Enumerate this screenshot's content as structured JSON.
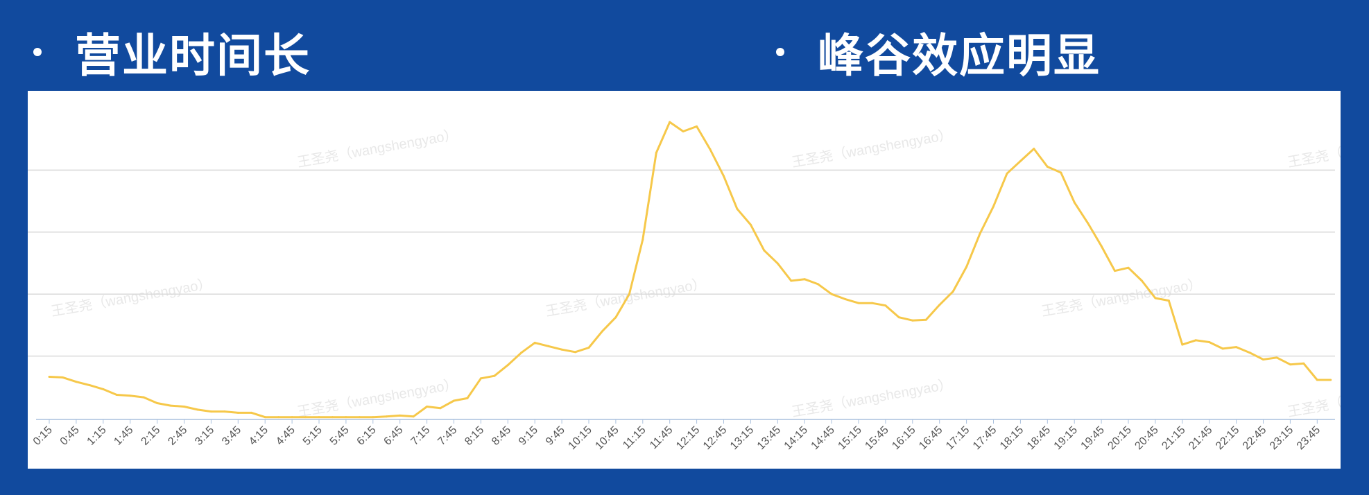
{
  "headings": {
    "left": "营业时间长",
    "right": "峰谷效应明显"
  },
  "watermark": "王圣尧（wangshengyao）",
  "colors": {
    "background": "#114a9e",
    "line": "#f6c84a",
    "grid": "#d9d9d9",
    "axis": "#aac0dd"
  },
  "chart_data": {
    "type": "line",
    "title": "",
    "xlabel": "",
    "ylabel": "",
    "ylim": [
      0,
      100
    ],
    "grid": true,
    "x": [
      "0:15",
      "0:30",
      "0:45",
      "1:00",
      "1:15",
      "1:30",
      "1:45",
      "2:00",
      "2:15",
      "2:30",
      "2:45",
      "3:00",
      "3:15",
      "3:30",
      "3:45",
      "4:00",
      "4:15",
      "4:30",
      "4:45",
      "5:00",
      "5:15",
      "5:30",
      "5:45",
      "6:00",
      "6:15",
      "6:30",
      "6:45",
      "7:00",
      "7:15",
      "7:30",
      "7:45",
      "8:00",
      "8:15",
      "8:30",
      "8:45",
      "9:00",
      "9:15",
      "9:30",
      "9:45",
      "10:00",
      "10:15",
      "10:30",
      "10:45",
      "11:00",
      "11:15",
      "11:30",
      "11:45",
      "12:00",
      "12:15",
      "12:30",
      "12:45",
      "13:00",
      "13:15",
      "13:30",
      "13:45",
      "14:00",
      "14:15",
      "14:30",
      "14:45",
      "15:00",
      "15:15",
      "15:30",
      "15:45",
      "16:00",
      "16:15",
      "16:30",
      "16:45",
      "17:00",
      "17:15",
      "17:30",
      "17:45",
      "18:00",
      "18:15",
      "18:30",
      "18:45",
      "19:00",
      "19:15",
      "19:30",
      "19:45",
      "20:00",
      "20:15",
      "20:30",
      "20:45",
      "21:00",
      "21:15",
      "21:30",
      "21:45",
      "22:00",
      "22:15",
      "22:30",
      "22:45",
      "23:00",
      "23:15",
      "23:30",
      "23:45",
      "24:00"
    ],
    "tick_labels": [
      "0:15",
      "0:45",
      "1:15",
      "1:45",
      "2:15",
      "2:45",
      "3:15",
      "3:45",
      "4:15",
      "4:45",
      "5:15",
      "5:45",
      "6:15",
      "6:45",
      "7:15",
      "7:45",
      "8:15",
      "8:45",
      "9:15",
      "9:45",
      "10:15",
      "10:45",
      "11:15",
      "11:45",
      "12:15",
      "12:45",
      "13:15",
      "13:45",
      "14:15",
      "14:45",
      "15:15",
      "15:45",
      "16:15",
      "16:45",
      "17:15",
      "17:45",
      "18:15",
      "18:45",
      "19:15",
      "19:45",
      "20:15",
      "20:45",
      "21:15",
      "21:45",
      "22:15",
      "22:45",
      "23:15",
      "23:45"
    ],
    "series": [
      {
        "name": "traffic",
        "values": [
          13.3,
          13.1,
          11.7,
          10.6,
          9.3,
          7.5,
          7.2,
          6.7,
          4.8,
          4.0,
          3.7,
          2.7,
          2.1,
          2.1,
          1.7,
          1.7,
          0.3,
          0.3,
          0.3,
          0.3,
          0.3,
          0.3,
          0.3,
          0.3,
          0.3,
          0.5,
          0.8,
          0.5,
          3.7,
          3.2,
          5.6,
          6.4,
          12.8,
          13.6,
          17.1,
          21.1,
          24.3,
          23.2,
          22.1,
          21.3,
          22.7,
          28.0,
          32.5,
          40.0,
          57.6,
          85.6,
          95.5,
          92.5,
          94.1,
          86.7,
          78.1,
          67.5,
          62.4,
          54.1,
          49.9,
          44.3,
          44.8,
          43.2,
          40.0,
          38.4,
          37.1,
          37.1,
          36.3,
          32.5,
          31.5,
          31.7,
          36.5,
          40.8,
          48.8,
          59.5,
          68.3,
          78.9,
          82.9,
          86.9,
          81.1,
          79.2,
          69.6,
          62.9,
          55.5,
          47.5,
          48.5,
          44.3,
          38.7,
          37.9,
          23.7,
          25.1,
          24.5,
          22.4,
          22.9,
          21.1,
          18.9,
          19.5,
          17.3,
          17.6,
          12.3,
          12.3
        ]
      }
    ]
  }
}
